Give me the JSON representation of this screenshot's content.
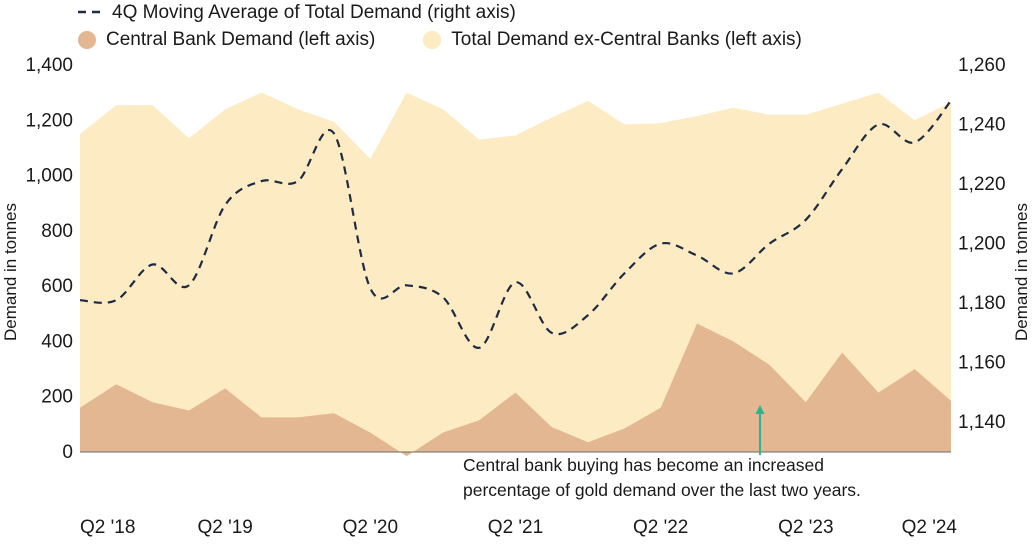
{
  "legend": {
    "moving_average": "4Q Moving Average of Total Demand (right axis)",
    "central_bank": "Central Bank Demand (left axis)",
    "ex_central": "Total Demand ex-Central Banks (left axis)"
  },
  "colors": {
    "central_bank": "#e2b791",
    "total": "#fcebc3",
    "moving_average": "#1f2a44",
    "arrow": "#2ab58e"
  },
  "annotation": {
    "line1": "Central bank buying has become an increased",
    "line2": "percentage of gold demand over the last two years."
  },
  "chart_data": {
    "type": "area",
    "title": "",
    "ylabel_left": "Demand in tonnes",
    "ylabel_right": "Demand in tonnes",
    "ylim_left": [
      0,
      1400
    ],
    "ylim_right": [
      1130,
      1260
    ],
    "yticks_left": [
      "0",
      "200",
      "400",
      "600",
      "800",
      "1,000",
      "1,200",
      "1,400"
    ],
    "yticks_right": [
      "1,140",
      "1,160",
      "1,180",
      "1,200",
      "1,220",
      "1,240",
      "1,260"
    ],
    "yticks_left_values": [
      0,
      200,
      400,
      600,
      800,
      1000,
      1200,
      1400
    ],
    "yticks_right_values": [
      1140,
      1160,
      1180,
      1200,
      1220,
      1240,
      1260
    ],
    "xtick_labels": [
      "Q2 '18",
      "Q2 '19",
      "Q2 '20",
      "Q2 '21",
      "Q2 '22",
      "Q2 '23",
      "Q2 '24"
    ],
    "xtick_indices": [
      0,
      4,
      8,
      12,
      16,
      20,
      24
    ],
    "categories": [
      "Q2 '18",
      "Q3 '18",
      "Q4 '18",
      "Q1 '19",
      "Q2 '19",
      "Q3 '19",
      "Q4 '19",
      "Q1 '20",
      "Q2 '20",
      "Q3 '20",
      "Q4 '20",
      "Q1 '21",
      "Q2 '21",
      "Q3 '21",
      "Q4 '21",
      "Q1 '22",
      "Q2 '22",
      "Q3 '22",
      "Q4 '22",
      "Q1 '23",
      "Q2 '23",
      "Q3 '23",
      "Q4 '23",
      "Q1 '24",
      "Q2 '24"
    ],
    "series": [
      {
        "name": "Central Bank Demand (left axis)",
        "axis": "left",
        "values": [
          160,
          245,
          180,
          150,
          230,
          125,
          125,
          140,
          70,
          -15,
          70,
          115,
          215,
          90,
          35,
          85,
          160,
          465,
          400,
          315,
          180,
          360,
          215,
          300,
          185
        ]
      },
      {
        "name": "Total Demand (left axis)",
        "axis": "left",
        "values": [
          1150,
          1255,
          1255,
          1135,
          1240,
          1300,
          1240,
          1195,
          1060,
          1300,
          1240,
          1130,
          1145,
          1210,
          1270,
          1185,
          1190,
          1215,
          1245,
          1220,
          1220,
          1260,
          1300,
          1200,
          1265
        ]
      },
      {
        "name": "4Q Moving Average of Total Demand (right axis)",
        "axis": "right",
        "values": [
          1181,
          1181,
          1193,
          1186,
          1213,
          1221,
          1221,
          1237,
          1185,
          1186,
          1182,
          1165,
          1187,
          1170,
          1176,
          1190,
          1200,
          1196,
          1190,
          1200,
          1208,
          1225,
          1240,
          1234,
          1248
        ]
      }
    ]
  }
}
